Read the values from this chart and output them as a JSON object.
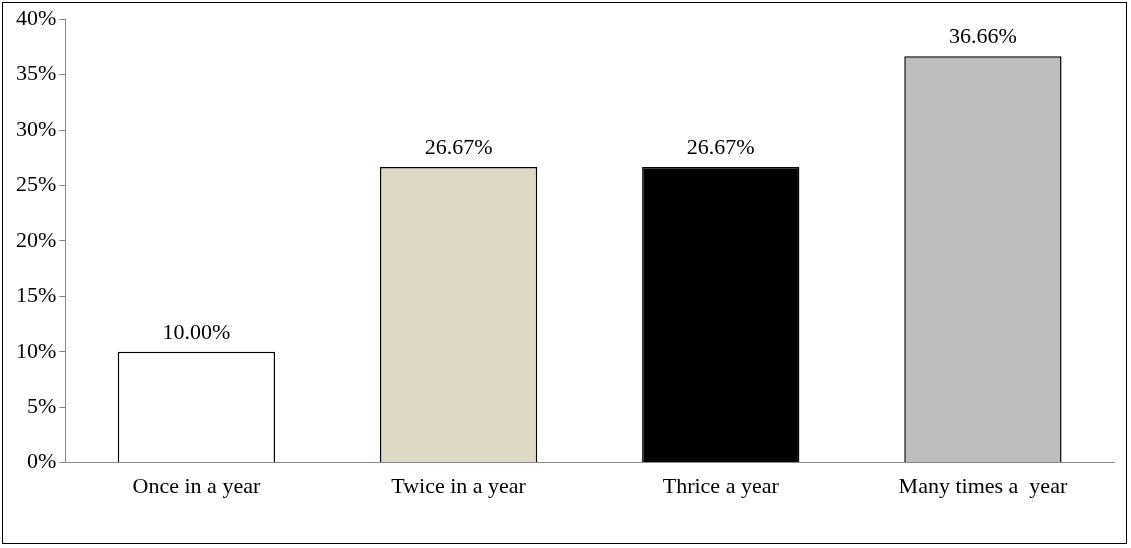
{
  "chart_data": {
    "type": "bar",
    "categories": [
      "Once in a year",
      "Twice in a year",
      "Thrice a year",
      "Many times a  year"
    ],
    "values": [
      10.0,
      26.67,
      26.67,
      36.66
    ],
    "value_labels": [
      "10.00%",
      "26.67%",
      "26.67%",
      "36.66%"
    ],
    "colors": [
      "#ffffff",
      "#ddd9c4",
      "#000000",
      "#bdbdbd"
    ],
    "ylim": [
      0,
      40
    ],
    "yticks": [
      {
        "value": 0,
        "label": "0%"
      },
      {
        "value": 5,
        "label": "5%"
      },
      {
        "value": 10,
        "label": "10%"
      },
      {
        "value": 15,
        "label": "15%"
      },
      {
        "value": 20,
        "label": "20%"
      },
      {
        "value": 25,
        "label": "25%"
      },
      {
        "value": 30,
        "label": "30%"
      },
      {
        "value": 35,
        "label": "35%"
      },
      {
        "value": 40,
        "label": "40%"
      }
    ],
    "grid": false,
    "legend": false
  }
}
